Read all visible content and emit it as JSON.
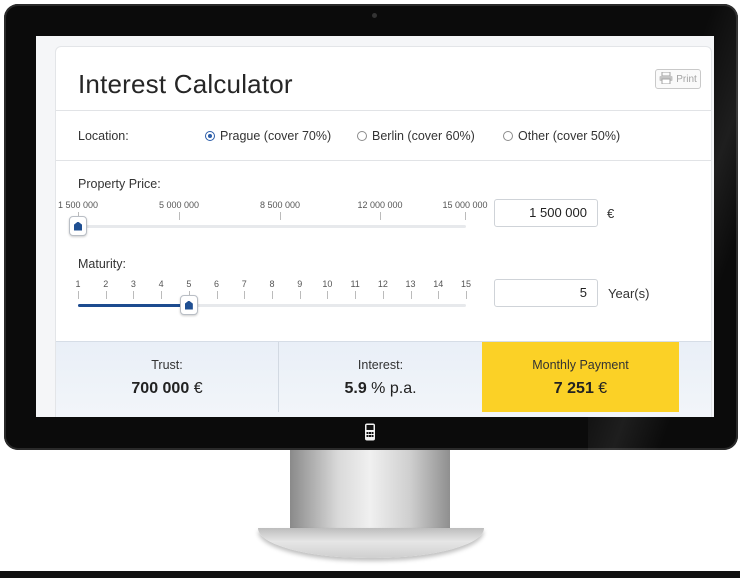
{
  "app": {
    "title": "Interest Calculator",
    "print_label": "Print"
  },
  "location": {
    "label": "Location:",
    "options": [
      {
        "label": "Prague (cover 70%)",
        "selected": true
      },
      {
        "label": "Berlin (cover 60%)",
        "selected": false
      },
      {
        "label": "Other (cover 50%)",
        "selected": false
      }
    ]
  },
  "property_price": {
    "label": "Property Price:",
    "ticks": [
      "1 500 000",
      "5 000 000",
      "8 500 000",
      "12 000 000",
      "15 000 000"
    ],
    "min": 1500000,
    "max": 15000000,
    "value": 1500000,
    "display_value": "1 500 000",
    "unit": "€"
  },
  "maturity": {
    "label": "Maturity:",
    "ticks": [
      "1",
      "2",
      "3",
      "4",
      "5",
      "6",
      "7",
      "8",
      "9",
      "10",
      "11",
      "12",
      "13",
      "14",
      "15"
    ],
    "min": 1,
    "max": 15,
    "value": 5,
    "display_value": "5",
    "unit": "Year(s)"
  },
  "results": {
    "trust_label": "Trust:",
    "trust_value": "700 000",
    "trust_currency": "€",
    "interest_label": "Interest:",
    "interest_value": "5.9",
    "interest_suffix": "% p.a.",
    "payment_label": "Monthly Payment",
    "payment_value": "7 251",
    "payment_currency": "€"
  },
  "colors": {
    "accent": "#1d4b8f",
    "highlight": "#fbd126"
  },
  "icons": {
    "print": "printer-icon",
    "logo": "phone-logo-icon"
  }
}
